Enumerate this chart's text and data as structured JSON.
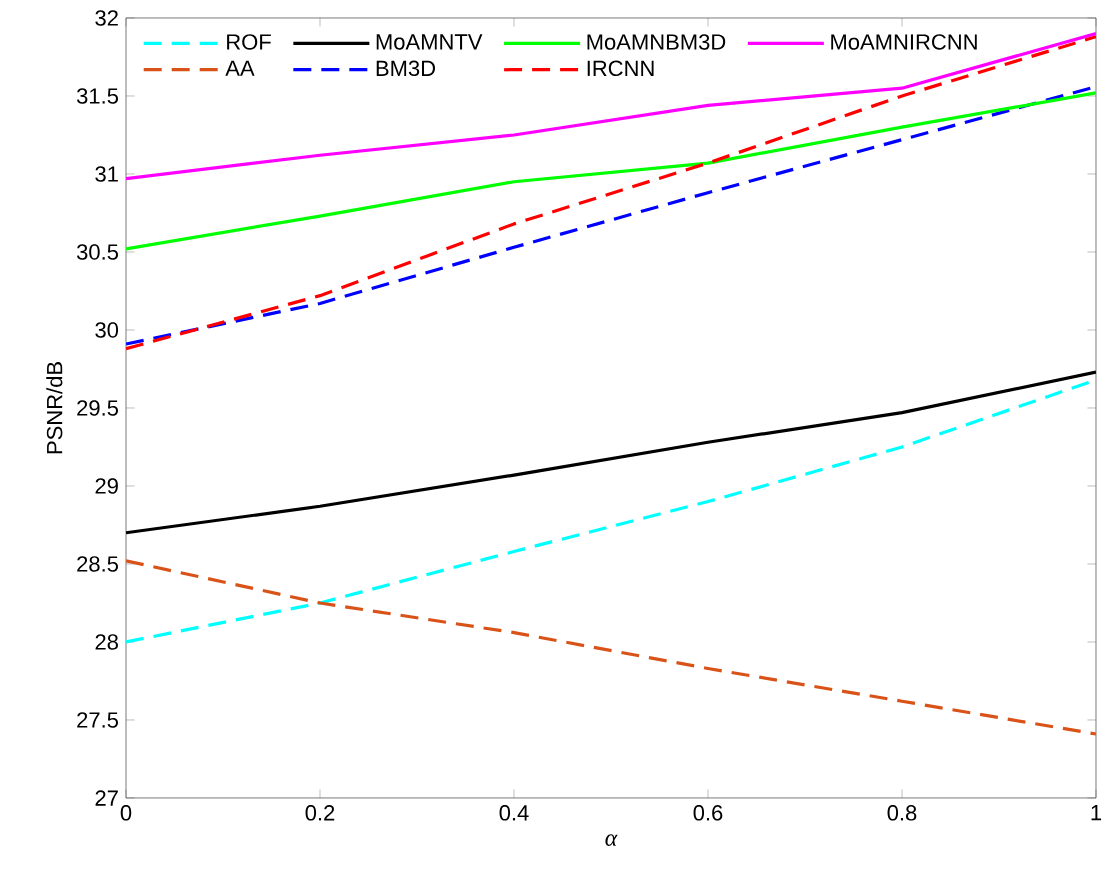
{
  "chart_data": {
    "type": "line",
    "xlabel": "α",
    "ylabel": "PSNR/dB",
    "x": [
      0,
      0.2,
      0.4,
      0.6,
      0.8,
      1
    ],
    "xlim": [
      0,
      1
    ],
    "xticks": [
      0,
      0.2,
      0.4,
      0.6,
      0.8,
      1
    ],
    "ylim": [
      27,
      32
    ],
    "yticks": [
      27,
      27.5,
      28,
      28.5,
      29,
      29.5,
      30,
      30.5,
      31,
      31.5,
      32
    ],
    "legend": "top left",
    "grid": false,
    "series": [
      {
        "name": "ROF",
        "color": "#00ffff",
        "line_style": "dashed",
        "values": [
          28.0,
          28.25,
          28.58,
          28.9,
          29.25,
          29.68
        ]
      },
      {
        "name": "AA",
        "color": "#d95319",
        "line_style": "dashed",
        "values": [
          28.52,
          28.25,
          28.06,
          27.83,
          27.62,
          27.41
        ]
      },
      {
        "name": "MoAMNTV",
        "color": "#000000",
        "line_style": "solid",
        "values": [
          28.7,
          28.87,
          29.07,
          29.28,
          29.47,
          29.73
        ]
      },
      {
        "name": "BM3D",
        "color": "#0000ff",
        "line_style": "dashed",
        "values": [
          29.91,
          30.17,
          30.53,
          30.88,
          31.22,
          31.56
        ]
      },
      {
        "name": "MoAMNBM3D",
        "color": "#00ff00",
        "line_style": "solid",
        "values": [
          30.52,
          30.73,
          30.95,
          31.07,
          31.3,
          31.52
        ]
      },
      {
        "name": "IRCNN",
        "color": "#ff0000",
        "line_style": "dashed",
        "values": [
          29.88,
          30.22,
          30.68,
          31.07,
          31.5,
          31.88
        ]
      },
      {
        "name": "MoAMNIRCNN",
        "color": "#ff00ff",
        "line_style": "solid",
        "values": [
          30.97,
          31.12,
          31.25,
          31.44,
          31.55,
          31.9
        ]
      }
    ]
  }
}
